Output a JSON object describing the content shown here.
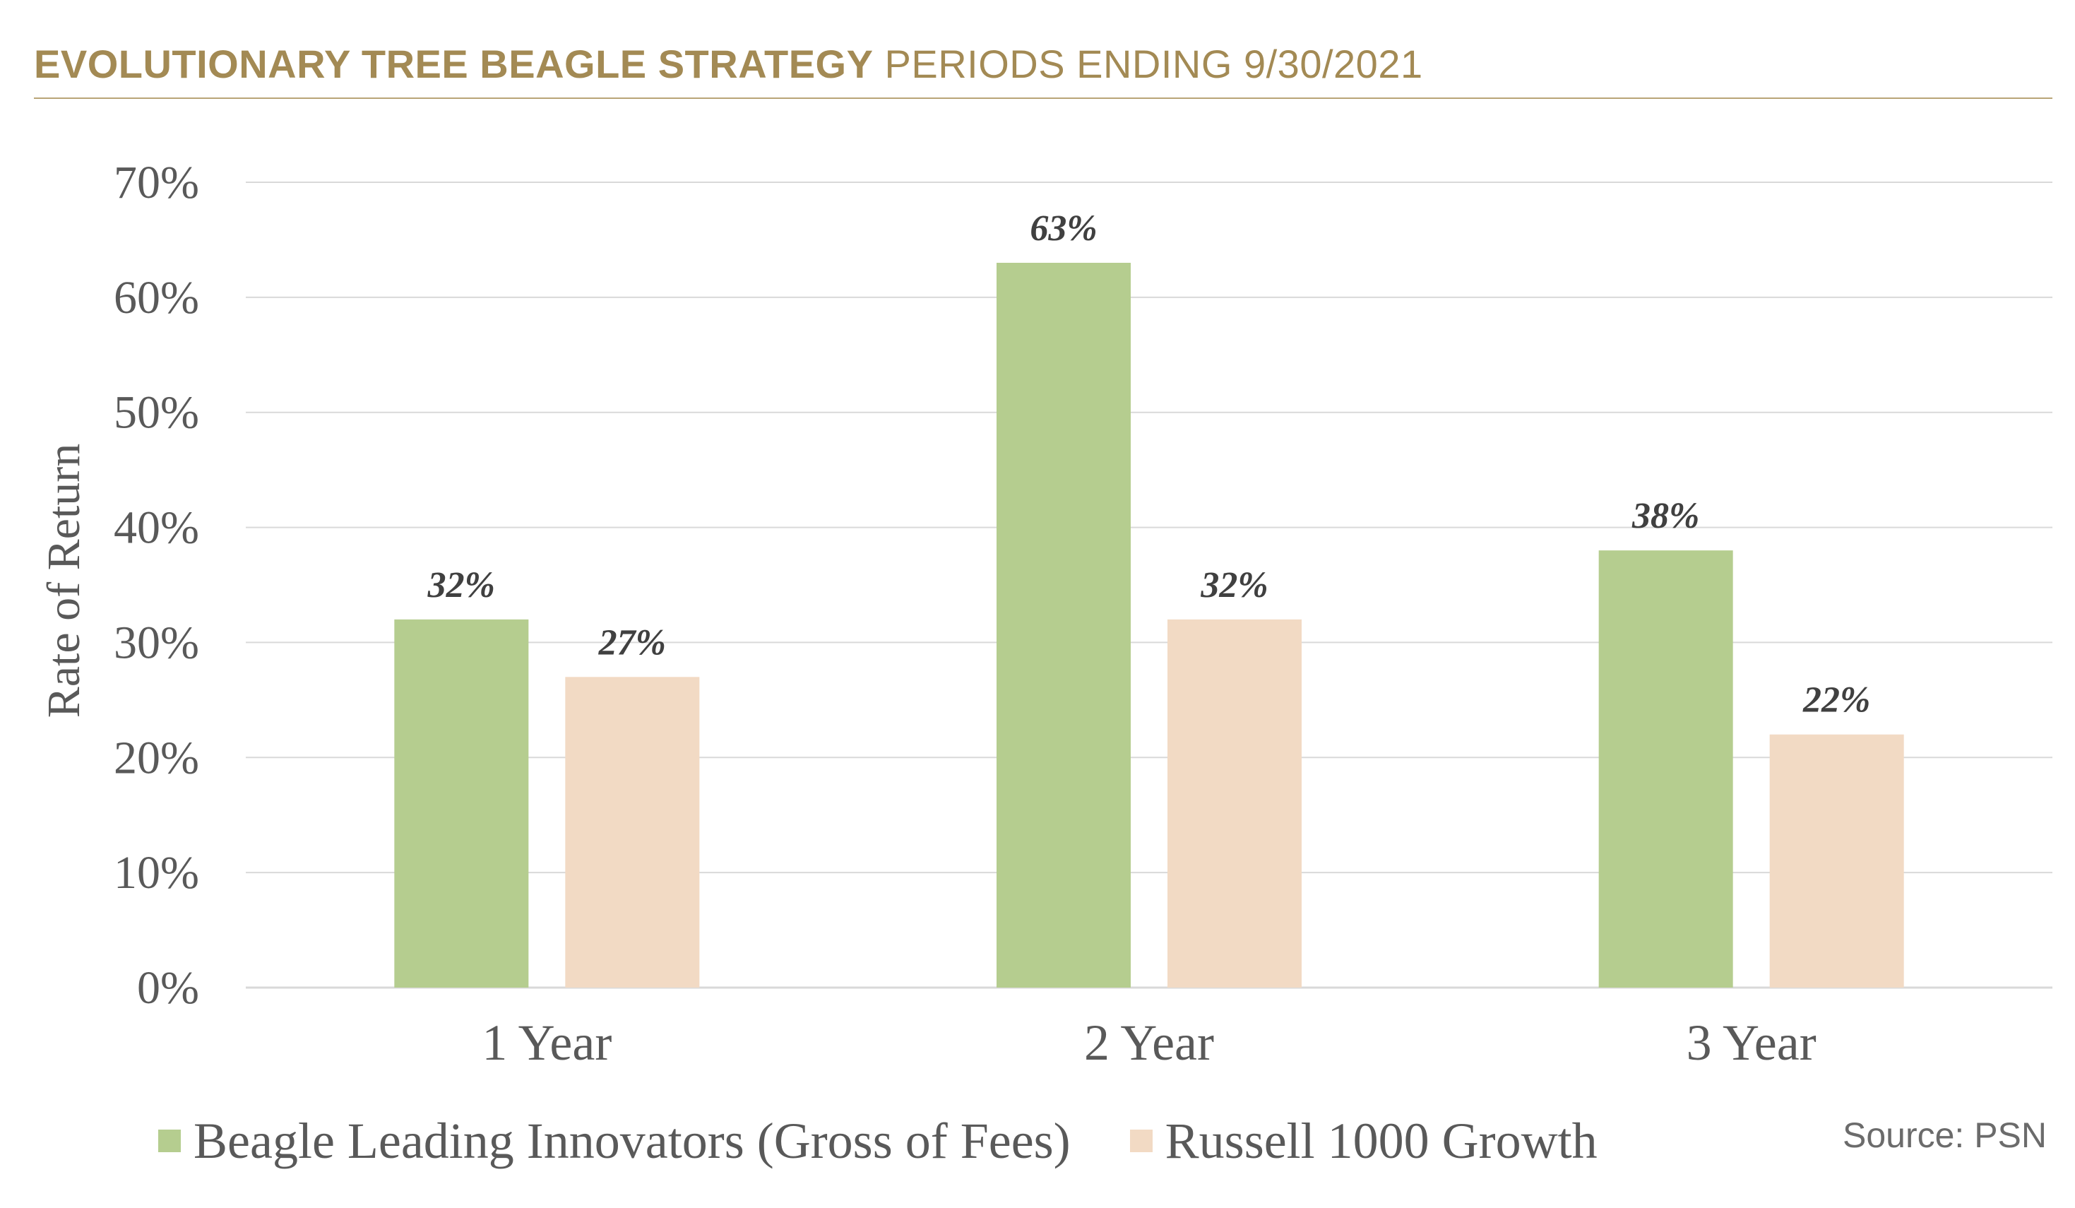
{
  "header": {
    "title_bold": "EVOLUTIONARY TREE BEAGLE STRATEGY",
    "title_light": "PERIODS ENDING 9/30/2021"
  },
  "source": "Source: PSN",
  "chart_data": {
    "type": "bar",
    "categories": [
      "1 Year",
      "2 Year",
      "3 Year"
    ],
    "series": [
      {
        "name": "Beagle Leading Innovators (Gross of Fees)",
        "values": [
          32,
          63,
          38
        ],
        "labels": [
          "32%",
          "63%",
          "38%"
        ],
        "color": "#b5cd8f"
      },
      {
        "name": "Russell 1000 Growth",
        "values": [
          27,
          32,
          22
        ],
        "labels": [
          "27%",
          "32%",
          "22%"
        ],
        "color": "#f2dac4"
      }
    ],
    "ylabel": "Rate of Return",
    "xlabel": "",
    "ylim": [
      0,
      70
    ],
    "yticks": [
      "0%",
      "10%",
      "20%",
      "30%",
      "40%",
      "50%",
      "60%",
      "70%"
    ],
    "grid": true,
    "gridline_color": "#d9d9d9",
    "legend_position": "bottom"
  }
}
